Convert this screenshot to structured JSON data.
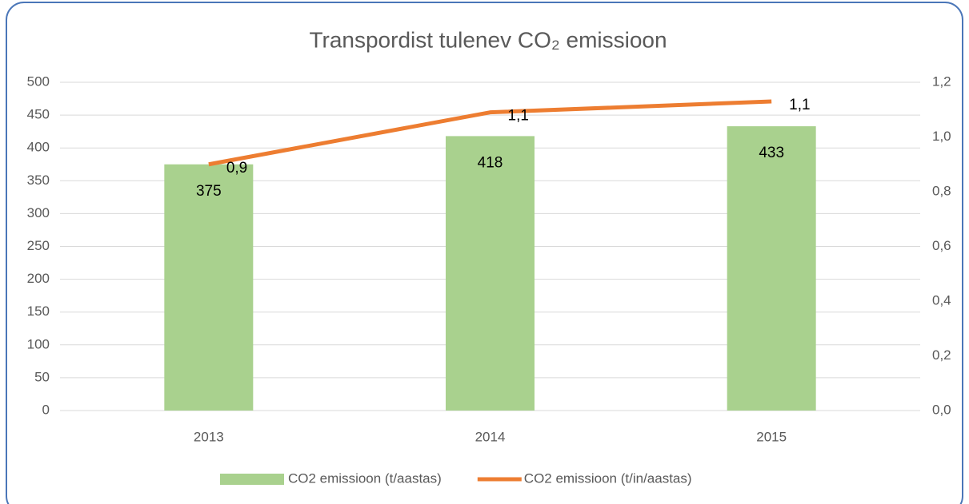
{
  "chart_data": {
    "type": "bar",
    "title": "Transpordist tulenev CO₂ emissioon",
    "categories": [
      "2013",
      "2014",
      "2015"
    ],
    "series": [
      {
        "name": "CO2 emissioon (t/aastas)",
        "color": "#a9d18e",
        "type": "bar",
        "values": [
          375,
          418,
          433
        ]
      },
      {
        "name": "CO2 emissioon (t/in/aastas)",
        "color": "#ed7d31",
        "type": "line",
        "axis": "y2",
        "values": [
          0.9,
          1.09,
          1.13
        ],
        "value_labels": [
          "0,9",
          "1,1",
          "1,1"
        ]
      }
    ],
    "ylim": [
      0,
      500
    ],
    "yticks": [
      0,
      50,
      100,
      150,
      200,
      250,
      300,
      350,
      400,
      450,
      500
    ],
    "y2lim": [
      0,
      1.2
    ],
    "y2ticks": [
      {
        "value": 0,
        "label": "0,0"
      },
      {
        "value": 0.2,
        "label": "0,2"
      },
      {
        "value": 0.4,
        "label": "0,4"
      },
      {
        "value": 0.6,
        "label": "0,6"
      },
      {
        "value": 0.8,
        "label": "0,8"
      },
      {
        "value": 1.0,
        "label": "1,0"
      },
      {
        "value": 1.2,
        "label": "1,2"
      }
    ],
    "grid": true,
    "legend": "bottom"
  }
}
